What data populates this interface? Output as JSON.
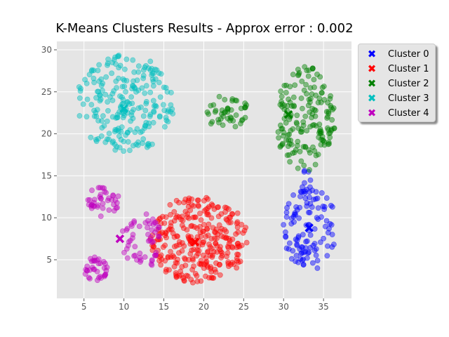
{
  "chart_data": {
    "type": "scatter",
    "title": "K-Means Clusters Results - Approx error : 0.002",
    "xlabel": "",
    "ylabel": "",
    "xlim": [
      1.6,
      38.5
    ],
    "ylim": [
      0.4,
      31.0
    ],
    "xticks": [
      5,
      10,
      15,
      20,
      25,
      30,
      35
    ],
    "yticks": [
      5,
      10,
      15,
      20,
      25,
      30
    ],
    "grid": true,
    "legend_position": "outside-top-right",
    "series": [
      {
        "name": "Cluster 0",
        "color": "#0000ff",
        "centroid": [
          33.2,
          8.8
        ],
        "regions": [
          {
            "cx": 33.3,
            "cy": 8.8,
            "rx": 3.4,
            "ry": 5.0,
            "n": 110
          },
          {
            "cx": 32.8,
            "cy": 14.3,
            "rx": 0.7,
            "ry": 1.4,
            "n": 10
          }
        ]
      },
      {
        "name": "Cluster 1",
        "color": "#ff0000",
        "centroid": [
          18.9,
          7.1
        ],
        "regions": [
          {
            "cx": 19.4,
            "cy": 7.4,
            "rx": 6.1,
            "ry": 5.3,
            "n": 300
          }
        ]
      },
      {
        "name": "Cluster 2",
        "color": "#008000",
        "centroid": [
          30.6,
          22.3
        ],
        "regions": [
          {
            "cx": 32.7,
            "cy": 21.8,
            "rx": 3.8,
            "ry": 6.3,
            "n": 170
          },
          {
            "cx": 22.8,
            "cy": 22.7,
            "rx": 2.8,
            "ry": 2.1,
            "n": 45
          }
        ]
      },
      {
        "name": "Cluster 3",
        "color": "#00bfbf",
        "centroid": [
          10.0,
          23.0
        ],
        "regions": [
          {
            "cx": 10.2,
            "cy": 23.6,
            "rx": 6.3,
            "ry": 5.8,
            "n": 230
          }
        ]
      },
      {
        "name": "Cluster 4",
        "color": "#bf00bf",
        "centroid": [
          9.5,
          7.5
        ],
        "regions": [
          {
            "cx": 7.4,
            "cy": 12.0,
            "rx": 2.0,
            "ry": 1.9,
            "n": 40
          },
          {
            "cx": 6.5,
            "cy": 3.9,
            "rx": 1.5,
            "ry": 1.5,
            "n": 35
          },
          {
            "cx": 12.3,
            "cy": 7.3,
            "rx": 2.6,
            "ry": 3.4,
            "n": 55
          }
        ]
      }
    ]
  },
  "legend": {
    "items": [
      {
        "label": "Cluster 0",
        "color": "#0000ff"
      },
      {
        "label": "Cluster 1",
        "color": "#ff0000"
      },
      {
        "label": "Cluster 2",
        "color": "#008000"
      },
      {
        "label": "Cluster 3",
        "color": "#00bfbf"
      },
      {
        "label": "Cluster 4",
        "color": "#bf00bf"
      }
    ]
  }
}
